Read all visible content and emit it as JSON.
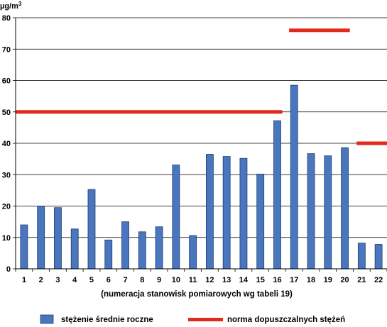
{
  "chart_data": {
    "type": "bar",
    "unit_label": "µg/m³",
    "xlabel": "(numeracja stanowisk pomiarowych wg tabeli 19)",
    "ylim": [
      0,
      80
    ],
    "yticks": [
      0,
      10,
      20,
      30,
      40,
      50,
      60,
      70,
      80
    ],
    "grid": true,
    "categories": [
      "1",
      "2",
      "3",
      "4",
      "5",
      "6",
      "7",
      "8",
      "9",
      "10",
      "11",
      "12",
      "13",
      "14",
      "15",
      "16",
      "17",
      "18",
      "19",
      "20",
      "21",
      "22"
    ],
    "series": [
      {
        "name": "stężenie średnie roczne",
        "color": "#4a76c0",
        "values": [
          14.0,
          20.0,
          19.5,
          12.7,
          25.3,
          9.2,
          15.0,
          11.8,
          13.4,
          33.1,
          10.6,
          36.5,
          35.8,
          35.2,
          30.2,
          47.2,
          58.5,
          36.7,
          36.0,
          38.6,
          8.2,
          7.8
        ]
      }
    ],
    "norm": {
      "name": "norma dopuszczalnych stężeń",
      "color": "#e02a1c",
      "segments": [
        {
          "from": "1",
          "to": "16",
          "value": 50
        },
        {
          "from": "17",
          "to": "20",
          "value": 76
        },
        {
          "from": "21",
          "to": "22",
          "value": 40
        }
      ]
    },
    "legend": {
      "placement": "bottom",
      "bar_label": "stężenie średnie roczne",
      "line_label": "norma dopuszczalnych stężeń"
    }
  }
}
